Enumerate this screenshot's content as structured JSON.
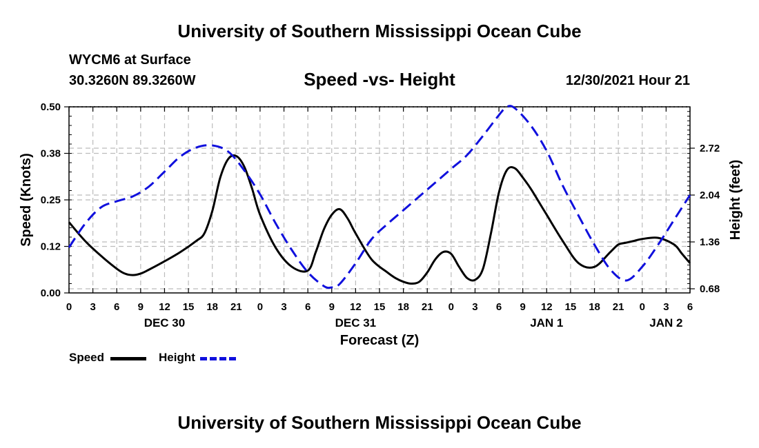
{
  "header": {
    "title": "University of Southern Mississippi Ocean Cube",
    "station": "WYCM6 at Surface",
    "coords": "30.3260N  89.3260W",
    "subtitle": "Speed -vs- Height",
    "datetime": "12/30/2021 Hour 21"
  },
  "footer": {
    "title": "University of Southern Mississippi Ocean Cube"
  },
  "legend": {
    "speed_label": "Speed",
    "height_label": "Height"
  },
  "colors": {
    "speed": "#000000",
    "height": "#1010dd",
    "grid": "#bbbbbb"
  },
  "chart_data": {
    "type": "line",
    "title": "Speed -vs- Height",
    "xlabel": "Forecast (Z)",
    "ylabel": "Speed (Knots)",
    "y2label": "Height (feet)",
    "x_range": [
      0,
      78
    ],
    "ylim": [
      0,
      0.5
    ],
    "y2lim": [
      0.62,
      3.32
    ],
    "yticks": [
      "0.00",
      "0.12",
      "0.25",
      "0.38",
      "0.50"
    ],
    "ytick_values": [
      0,
      0.125,
      0.25,
      0.375,
      0.5
    ],
    "y2ticks": [
      "0.68",
      "1.36",
      "2.04",
      "2.72"
    ],
    "y2tick_values": [
      0.68,
      1.36,
      2.04,
      2.72
    ],
    "xticks": [
      "0",
      "3",
      "6",
      "9",
      "12",
      "15",
      "18",
      "21",
      "0",
      "3",
      "6",
      "9",
      "12",
      "15",
      "18",
      "21",
      "0",
      "3",
      "6",
      "9",
      "12",
      "15",
      "18",
      "21",
      "0",
      "3",
      "6"
    ],
    "day_labels": [
      {
        "label": "DEC 30",
        "x": 12
      },
      {
        "label": "DEC 31",
        "x": 36
      },
      {
        "label": "JAN 1",
        "x": 60
      },
      {
        "label": "JAN 2",
        "x": 75
      }
    ],
    "series": [
      {
        "name": "Speed",
        "axis": "left",
        "style": "solid",
        "x": [
          0,
          2,
          4,
          6,
          7,
          8,
          9,
          10,
          12,
          14,
          16,
          17,
          18,
          19,
          20,
          21,
          22,
          23,
          24,
          26,
          28,
          30,
          31,
          32,
          33,
          34,
          35,
          36,
          38,
          40,
          41,
          42,
          43,
          44,
          45,
          46,
          47,
          48,
          49,
          50,
          51,
          52,
          53,
          54,
          55,
          56,
          57,
          58,
          59,
          60,
          62,
          64,
          66,
          68,
          69,
          70,
          71,
          72,
          74,
          76,
          77,
          78
        ],
        "values": [
          0.19,
          0.14,
          0.1,
          0.065,
          0.052,
          0.048,
          0.052,
          0.062,
          0.085,
          0.11,
          0.14,
          0.16,
          0.22,
          0.31,
          0.36,
          0.368,
          0.34,
          0.28,
          0.21,
          0.12,
          0.07,
          0.06,
          0.11,
          0.17,
          0.21,
          0.225,
          0.2,
          0.16,
          0.09,
          0.055,
          0.04,
          0.03,
          0.025,
          0.03,
          0.055,
          0.09,
          0.11,
          0.105,
          0.07,
          0.04,
          0.035,
          0.065,
          0.16,
          0.27,
          0.33,
          0.335,
          0.31,
          0.28,
          0.245,
          0.21,
          0.14,
          0.08,
          0.07,
          0.11,
          0.13,
          0.135,
          0.14,
          0.145,
          0.148,
          0.13,
          0.105,
          0.08
        ]
      },
      {
        "name": "Height",
        "axis": "right",
        "style": "dashed",
        "x": [
          0,
          2,
          4,
          6,
          8,
          10,
          12,
          14,
          16,
          18,
          20,
          22,
          24,
          26,
          28,
          30,
          32,
          33,
          34,
          36,
          38,
          40,
          42,
          44,
          46,
          48,
          50,
          52,
          54,
          55,
          56,
          58,
          60,
          62,
          64,
          66,
          68,
          70,
          72,
          74,
          76,
          78
        ],
        "values": [
          1.28,
          1.62,
          1.86,
          1.95,
          2.02,
          2.16,
          2.38,
          2.6,
          2.73,
          2.76,
          2.67,
          2.4,
          2.05,
          1.62,
          1.24,
          0.92,
          0.72,
          0.7,
          0.75,
          1.05,
          1.4,
          1.62,
          1.82,
          2.02,
          2.22,
          2.42,
          2.62,
          2.9,
          3.2,
          3.32,
          3.3,
          3.05,
          2.68,
          2.18,
          1.74,
          1.32,
          0.96,
          0.8,
          1.0,
          1.32,
          1.68,
          2.04
        ]
      }
    ]
  }
}
